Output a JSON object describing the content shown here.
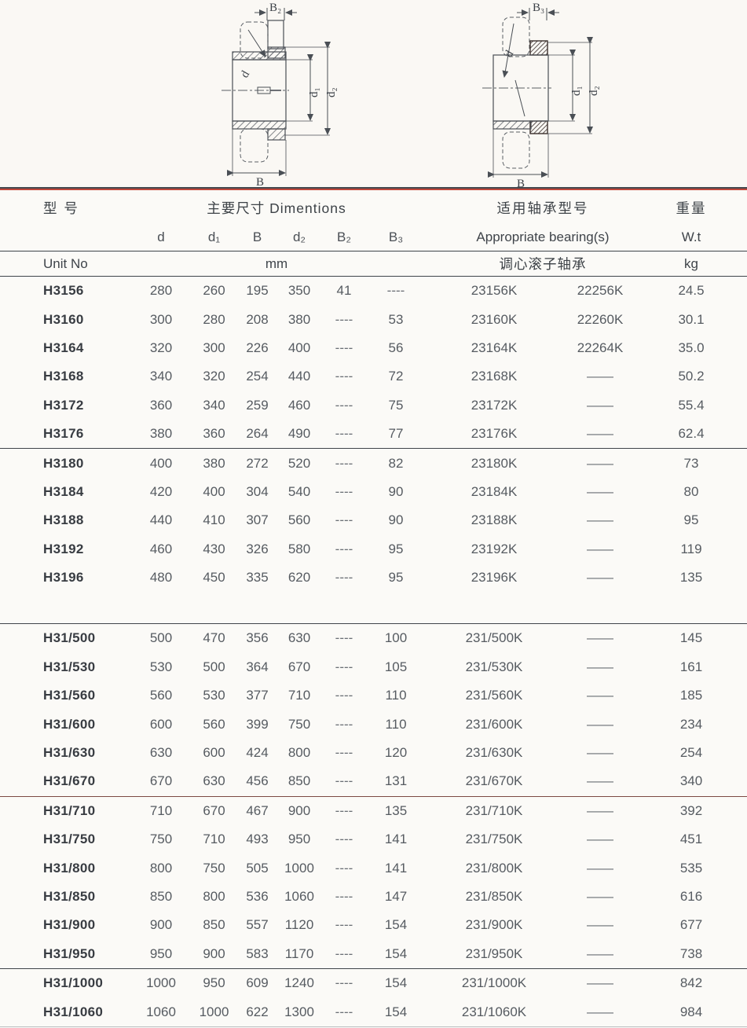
{
  "drawings": {
    "left": {
      "width_label": "B₂",
      "bore_label": "d",
      "d1_label": "d₁",
      "d2_label": "d₂",
      "length_label": "B"
    },
    "right": {
      "width_label": "B₃",
      "bore_label": "d",
      "d1_label": "d₁",
      "d2_label": "d₂",
      "length_label": "B"
    }
  },
  "table": {
    "header": {
      "model_cn": "型 号",
      "dims_title": "主要尺寸  Dimentions",
      "bearing_title_cn": "适用轴承型号",
      "weight_cn": "重量",
      "sub_dims": [
        "d",
        "d₁",
        "B",
        "d₂",
        "B₂",
        "B₃"
      ],
      "bearing_title_en": "Appropriate bearing(s)",
      "weight_en": "W.t",
      "unit_no": "Unit No",
      "mm": "mm",
      "bearing_type_cn": "调心滚子轴承",
      "kg": "kg"
    },
    "rows": [
      {
        "group": 1,
        "no": "H3156",
        "d": "280",
        "d1": "260",
        "B": "195",
        "d2": "350",
        "B2": "41",
        "B3": "----",
        "brg1": "23156K",
        "brg2": "22256K",
        "wt": "24.5"
      },
      {
        "group": 1,
        "no": "H3160",
        "d": "300",
        "d1": "280",
        "B": "208",
        "d2": "380",
        "B2": "----",
        "B3": "53",
        "brg1": "23160K",
        "brg2": "22260K",
        "wt": "30.1"
      },
      {
        "group": 1,
        "no": "H3164",
        "d": "320",
        "d1": "300",
        "B": "226",
        "d2": "400",
        "B2": "----",
        "B3": "56",
        "brg1": "23164K",
        "brg2": "22264K",
        "wt": "35.0"
      },
      {
        "group": 1,
        "no": "H3168",
        "d": "340",
        "d1": "320",
        "B": "254",
        "d2": "440",
        "B2": "----",
        "B3": "72",
        "brg1": "23168K",
        "brg2": "——",
        "wt": "50.2"
      },
      {
        "group": 1,
        "no": "H3172",
        "d": "360",
        "d1": "340",
        "B": "259",
        "d2": "460",
        "B2": "----",
        "B3": "75",
        "brg1": "23172K",
        "brg2": "——",
        "wt": "55.4"
      },
      {
        "group": 1,
        "no": "H3176",
        "d": "380",
        "d1": "360",
        "B": "264",
        "d2": "490",
        "B2": "----",
        "B3": "77",
        "brg1": "23176K",
        "brg2": "——",
        "wt": "62.4"
      },
      {
        "group": 2,
        "no": "H3180",
        "d": "400",
        "d1": "380",
        "B": "272",
        "d2": "520",
        "B2": "----",
        "B3": "82",
        "brg1": "23180K",
        "brg2": "——",
        "wt": "73"
      },
      {
        "group": 2,
        "no": "H3184",
        "d": "420",
        "d1": "400",
        "B": "304",
        "d2": "540",
        "B2": "----",
        "B3": "90",
        "brg1": "23184K",
        "brg2": "——",
        "wt": "80"
      },
      {
        "group": 2,
        "no": "H3188",
        "d": "440",
        "d1": "410",
        "B": "307",
        "d2": "560",
        "B2": "----",
        "B3": "90",
        "brg1": "23188K",
        "brg2": "——",
        "wt": "95"
      },
      {
        "group": 2,
        "no": "H3192",
        "d": "460",
        "d1": "430",
        "B": "326",
        "d2": "580",
        "B2": "----",
        "B3": "95",
        "brg1": "23192K",
        "brg2": "——",
        "wt": "119"
      },
      {
        "group": 2,
        "no": "H3196",
        "d": "480",
        "d1": "450",
        "B": "335",
        "d2": "620",
        "B2": "----",
        "B3": "95",
        "brg1": "23196K",
        "brg2": "——",
        "wt": "135"
      },
      {
        "group": 3,
        "no": "H31/500",
        "d": "500",
        "d1": "470",
        "B": "356",
        "d2": "630",
        "B2": "----",
        "B3": "100",
        "brg1": "231/500K",
        "brg2": "——",
        "wt": "145"
      },
      {
        "group": 3,
        "no": "H31/530",
        "d": "530",
        "d1": "500",
        "B": "364",
        "d2": "670",
        "B2": "----",
        "B3": "105",
        "brg1": "231/530K",
        "brg2": "——",
        "wt": "161"
      },
      {
        "group": 3,
        "no": "H31/560",
        "d": "560",
        "d1": "530",
        "B": "377",
        "d2": "710",
        "B2": "----",
        "B3": "110",
        "brg1": "231/560K",
        "brg2": "——",
        "wt": "185"
      },
      {
        "group": 3,
        "no": "H31/600",
        "d": "600",
        "d1": "560",
        "B": "399",
        "d2": "750",
        "B2": "----",
        "B3": "110",
        "brg1": "231/600K",
        "brg2": "——",
        "wt": "234"
      },
      {
        "group": 3,
        "no": "H31/630",
        "d": "630",
        "d1": "600",
        "B": "424",
        "d2": "800",
        "B2": "----",
        "B3": "120",
        "brg1": "231/630K",
        "brg2": "——",
        "wt": "254"
      },
      {
        "group": 3,
        "no": "H31/670",
        "d": "670",
        "d1": "630",
        "B": "456",
        "d2": "850",
        "B2": "----",
        "B3": "131",
        "brg1": "231/670K",
        "brg2": "——",
        "wt": "340"
      },
      {
        "group": 4,
        "no": "H31/710",
        "d": "710",
        "d1": "670",
        "B": "467",
        "d2": "900",
        "B2": "----",
        "B3": "135",
        "brg1": "231/710K",
        "brg2": "——",
        "wt": "392"
      },
      {
        "group": 4,
        "no": "H31/750",
        "d": "750",
        "d1": "710",
        "B": "493",
        "d2": "950",
        "B2": "----",
        "B3": "141",
        "brg1": "231/750K",
        "brg2": "——",
        "wt": "451"
      },
      {
        "group": 4,
        "no": "H31/800",
        "d": "800",
        "d1": "750",
        "B": "505",
        "d2": "1000",
        "B2": "----",
        "B3": "141",
        "brg1": "231/800K",
        "brg2": "——",
        "wt": "535"
      },
      {
        "group": 4,
        "no": "H31/850",
        "d": "850",
        "d1": "800",
        "B": "536",
        "d2": "1060",
        "B2": "----",
        "B3": "147",
        "brg1": "231/850K",
        "brg2": "——",
        "wt": "616"
      },
      {
        "group": 4,
        "no": "H31/900",
        "d": "900",
        "d1": "850",
        "B": "557",
        "d2": "1120",
        "B2": "----",
        "B3": "154",
        "brg1": "231/900K",
        "brg2": "——",
        "wt": "677"
      },
      {
        "group": 4,
        "no": "H31/950",
        "d": "950",
        "d1": "900",
        "B": "583",
        "d2": "1170",
        "B2": "----",
        "B3": "154",
        "brg1": "231/950K",
        "brg2": "——",
        "wt": "738"
      },
      {
        "group": 5,
        "no": "H31/1000",
        "d": "1000",
        "d1": "950",
        "B": "609",
        "d2": "1240",
        "B2": "----",
        "B3": "154",
        "brg1": "231/1000K",
        "brg2": "——",
        "wt": "842"
      },
      {
        "group": 5,
        "no": "H31/1060",
        "d": "1060",
        "d1": "1000",
        "B": "622",
        "d2": "1300",
        "B2": "----",
        "B3": "154",
        "brg1": "231/1060K",
        "brg2": "——",
        "wt": "984"
      }
    ]
  }
}
